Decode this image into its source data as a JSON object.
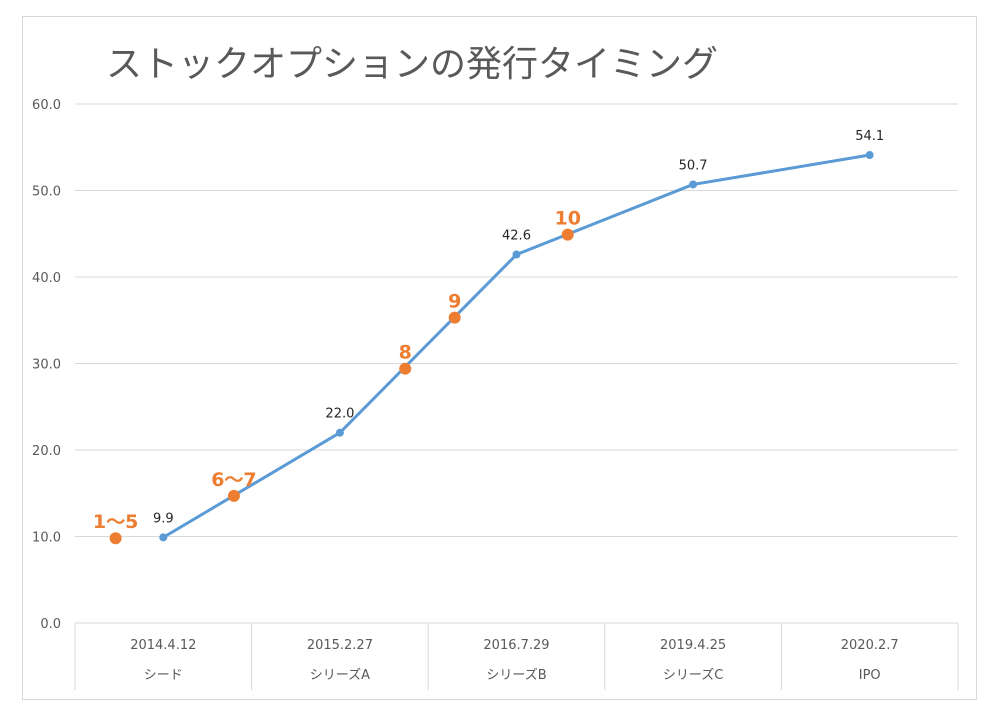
{
  "colors": {
    "line": "#5b9bd5",
    "marker_orange": "#ed7d31",
    "grid": "#d9d9d9",
    "text": "#595959"
  },
  "chart_data": {
    "type": "line",
    "title": "ストックオプションの発行タイミング",
    "ylim": [
      0,
      60
    ],
    "yticks": [
      "0.0",
      "10.0",
      "20.0",
      "30.0",
      "40.0",
      "50.0",
      "60.0"
    ],
    "grid": true,
    "categories": [
      {
        "date": "2014.4.12",
        "label": "シード"
      },
      {
        "date": "2015.2.27",
        "label": "シリーズA"
      },
      {
        "date": "2016.7.29",
        "label": "シリーズB"
      },
      {
        "date": "2019.4.25",
        "label": "シリーズC"
      },
      {
        "date": "2020.2.7",
        "label": "IPO"
      }
    ],
    "series": [
      {
        "values": [
          9.9,
          22.0,
          42.6,
          50.7,
          54.1
        ],
        "labels": [
          "9.9",
          "22.0",
          "42.6",
          "50.7",
          "54.1"
        ]
      }
    ],
    "annotations": [
      {
        "text": "1〜5",
        "x": -0.27,
        "y": 9.8
      },
      {
        "text": "6〜7",
        "x": 0.4,
        "y": 14.7
      },
      {
        "text": "8",
        "x": 1.37,
        "y": 29.4
      },
      {
        "text": "9",
        "x": 1.65,
        "y": 35.3
      },
      {
        "text": "10",
        "x": 2.29,
        "y": 44.9
      }
    ]
  }
}
